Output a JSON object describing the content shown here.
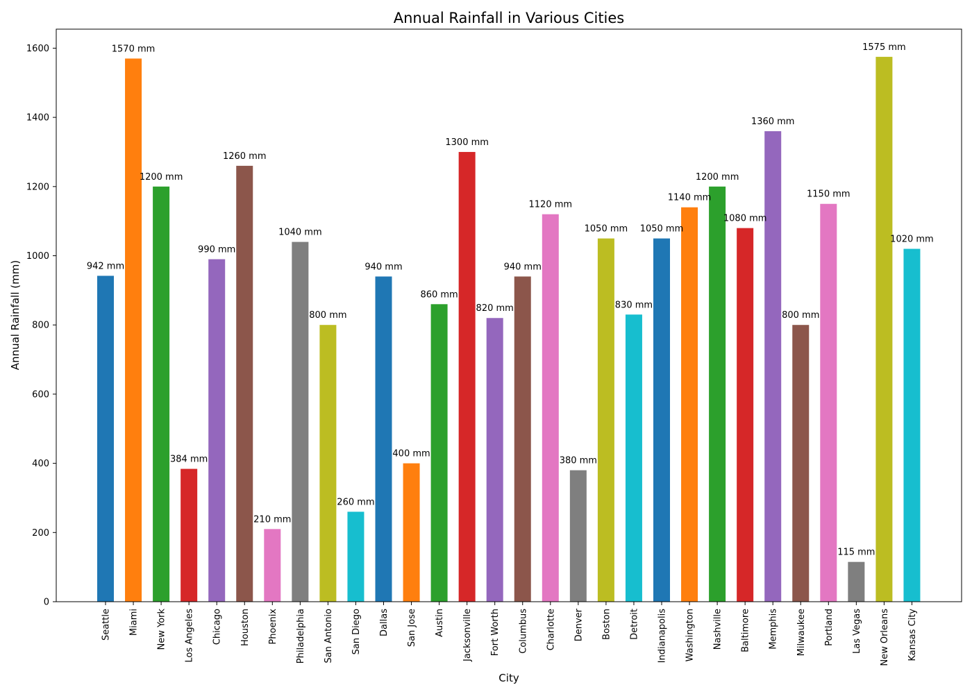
{
  "chart_data": {
    "type": "bar",
    "title": "Annual Rainfall in Various Cities",
    "xlabel": "City",
    "ylabel": "Annual Rainfall (mm)",
    "ylim": [
      0,
      1655
    ],
    "yticks": [
      0,
      200,
      400,
      600,
      800,
      1000,
      1200,
      1400,
      1600
    ],
    "grid": false,
    "label_unit": "mm",
    "categories": [
      "Seattle",
      "Miami",
      "New York",
      "Los Angeles",
      "Chicago",
      "Houston",
      "Phoenix",
      "Philadelphia",
      "San Antonio",
      "San Diego",
      "Dallas",
      "San Jose",
      "Austin",
      "Jacksonville",
      "Fort Worth",
      "Columbus",
      "Charlotte",
      "Denver",
      "Boston",
      "Detroit",
      "Indianapolis",
      "Washington",
      "Nashville",
      "Baltimore",
      "Memphis",
      "Milwaukee",
      "Portland",
      "Las Vegas",
      "New Orleans",
      "Kansas City"
    ],
    "values": [
      942,
      1570,
      1200,
      384,
      990,
      1260,
      210,
      1040,
      800,
      260,
      940,
      400,
      860,
      1300,
      820,
      940,
      1120,
      380,
      1050,
      830,
      1050,
      1140,
      1200,
      1080,
      1360,
      800,
      1150,
      115,
      1575,
      1020
    ],
    "colors": [
      "#1f77b4",
      "#ff7f0e",
      "#2ca02c",
      "#d62728",
      "#9467bd",
      "#8c564b",
      "#e377c2",
      "#7f7f7f",
      "#bcbd22",
      "#17becf"
    ]
  }
}
